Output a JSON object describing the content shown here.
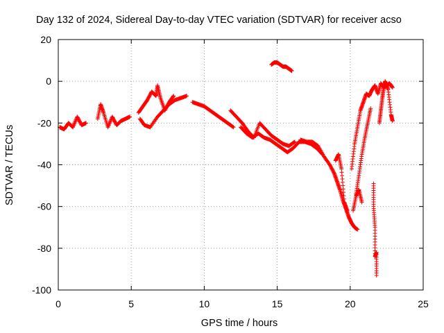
{
  "chart_data": {
    "type": "scatter",
    "title": "Day 132 of 2024, Sidereal Day-to-day VTEC variation (SDTVAR) for receiver acso",
    "xlabel": "GPS time / hours",
    "ylabel": "SDTVAR / TECUs",
    "xlim": [
      0,
      25
    ],
    "ylim": [
      -100,
      20
    ],
    "xticks": [
      0,
      5,
      10,
      15,
      20,
      25
    ],
    "yticks": [
      -100,
      -80,
      -60,
      -40,
      -20,
      0,
      20
    ],
    "grid": true,
    "marker": "plus",
    "color": "#ff0000",
    "series": [
      {
        "name": "seg1",
        "x": [
          0.1,
          0.4,
          0.7,
          1.0,
          1.3,
          1.6,
          1.9
        ],
        "y": [
          -22,
          -23,
          -20,
          -22,
          -17,
          -21,
          -20
        ]
      },
      {
        "name": "seg2",
        "x": [
          2.7,
          2.9,
          3.1,
          3.4,
          3.7,
          4.0,
          4.3,
          4.6,
          4.9
        ],
        "y": [
          -18,
          -11,
          -15,
          -22,
          -17,
          -21,
          -19,
          -18,
          -17
        ]
      },
      {
        "name": "seg3",
        "x": [
          5.5,
          5.8,
          6.1,
          6.4,
          6.7,
          6.8,
          7.0,
          7.3,
          7.6,
          7.9
        ],
        "y": [
          -15,
          -12,
          -9,
          -5,
          -7,
          -2,
          -8,
          -14,
          -10,
          -7
        ]
      },
      {
        "name": "seg4",
        "x": [
          5.6,
          5.9,
          6.3,
          6.8,
          7.2,
          7.6,
          8.0,
          8.4,
          8.8
        ],
        "y": [
          -18,
          -21,
          -22,
          -17,
          -14,
          -11,
          -9,
          -8,
          -7
        ]
      },
      {
        "name": "seg5",
        "x": [
          9.2,
          9.6,
          10.0,
          10.4,
          10.8,
          11.2,
          11.6,
          12.0
        ],
        "y": [
          -10,
          -11,
          -12,
          -14,
          -16,
          -18,
          -20,
          -22
        ]
      },
      {
        "name": "seg6",
        "x": [
          11.8,
          12.2,
          12.6,
          13.0,
          13.4,
          13.8,
          14.2,
          14.6,
          15.0,
          15.4,
          15.8,
          16.2
        ],
        "y": [
          -14,
          -17,
          -20,
          -24,
          -27,
          -20,
          -23,
          -26,
          -28,
          -30,
          -31,
          -29
        ]
      },
      {
        "name": "seg7",
        "x": [
          12.5,
          12.9,
          13.3,
          13.7,
          14.1,
          14.5,
          14.9,
          15.3,
          15.7,
          16.1,
          16.5,
          16.9,
          17.3,
          17.7,
          18.1
        ],
        "y": [
          -22,
          -25,
          -27,
          -25,
          -27,
          -28,
          -30,
          -32,
          -34,
          -32,
          -29,
          -29,
          -30,
          -32,
          -35
        ]
      },
      {
        "name": "seg8",
        "x": [
          14.6,
          14.8,
          15.0,
          15.2,
          15.4,
          15.6,
          15.8,
          16.0
        ],
        "y": [
          8,
          9,
          9,
          8,
          7,
          7,
          6,
          5
        ]
      },
      {
        "name": "seg9",
        "x": [
          16.6,
          17.0,
          17.4,
          17.8,
          18.2,
          18.6,
          18.9,
          19.1,
          19.3,
          19.5,
          19.7,
          19.9,
          20.1,
          20.3,
          20.5
        ],
        "y": [
          -28,
          -29,
          -29,
          -31,
          -36,
          -40,
          -44,
          -48,
          -52,
          -57,
          -61,
          -65,
          -68,
          -70,
          -71
        ]
      },
      {
        "name": "seg10",
        "x": [
          19.0,
          19.2,
          19.4,
          19.6,
          19.8
        ],
        "y": [
          -38,
          -35,
          -42,
          -58,
          -62
        ]
      },
      {
        "name": "seg11",
        "x": [
          20.1,
          20.3,
          20.5,
          20.7,
          20.9,
          21.1,
          21.3,
          21.5,
          21.7,
          21.9,
          22.1,
          22.3,
          22.5,
          22.7,
          22.9
        ],
        "y": [
          -42,
          -30,
          -22,
          -14,
          -10,
          -6,
          -7,
          -4,
          -2,
          -6,
          -1,
          -3,
          -2,
          -1,
          -3
        ]
      },
      {
        "name": "seg12",
        "x": [
          20.4,
          20.6,
          20.8,
          21.0,
          21.2,
          21.4
        ],
        "y": [
          -54,
          -45,
          -35,
          -27,
          -20,
          -13
        ]
      },
      {
        "name": "seg13",
        "x": [
          21.6,
          21.6,
          21.7,
          21.7,
          21.8,
          21.8
        ],
        "y": [
          -49,
          -60,
          -70,
          -84,
          -82,
          -93
        ]
      },
      {
        "name": "seg14",
        "x": [
          22.0,
          22.1,
          22.2,
          22.3,
          22.4,
          22.6,
          22.8,
          22.9
        ],
        "y": [
          -20,
          -14,
          -8,
          -3,
          0,
          -4,
          -16,
          -19
        ]
      },
      {
        "name": "seg15",
        "x": [
          20.2,
          20.4,
          20.6,
          20.8
        ],
        "y": [
          -62,
          -55,
          -52,
          -58
        ]
      }
    ]
  }
}
